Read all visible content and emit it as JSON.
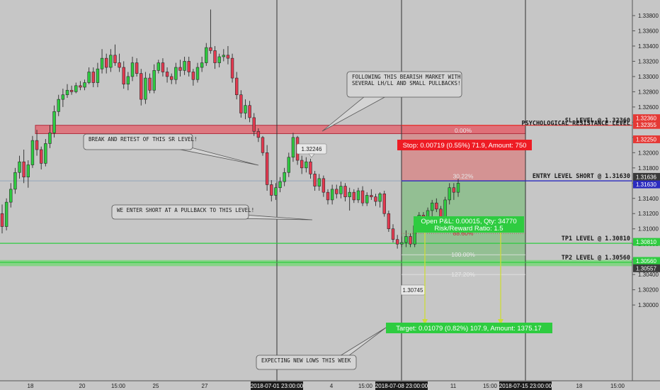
{
  "chart_data": {
    "type": "candlestick",
    "x_ticks": [
      "18",
      "20",
      "15:00",
      "25",
      "27",
      "2018-07-01 23:00:00",
      "4",
      "15:00",
      "2018-07-08 23:00:00",
      "11",
      "15:00",
      "2018-07-15 23:00:00",
      "18",
      "15:00"
    ],
    "y_ticks": [
      "1.33800",
      "1.33600",
      "1.33400",
      "1.33200",
      "1.33000",
      "1.32800",
      "1.32600",
      "1.32400",
      "1.32200",
      "1.32000",
      "1.31800",
      "1.31600",
      "1.31400",
      "1.31200",
      "1.31000",
      "1.30800",
      "1.30600",
      "1.30400",
      "1.30200",
      "1.30000"
    ],
    "ylim": [
      1.2998,
      1.3392
    ],
    "y_top_tick": 1.338,
    "candles_ohlc": [
      [
        1.312,
        1.3132,
        1.3094,
        1.3103
      ],
      [
        1.3103,
        1.314,
        1.3098,
        1.3135
      ],
      [
        1.3135,
        1.316,
        1.3128,
        1.3152
      ],
      [
        1.3152,
        1.318,
        1.3146,
        1.3174
      ],
      [
        1.3174,
        1.3196,
        1.3166,
        1.3188
      ],
      [
        1.3188,
        1.3204,
        1.316,
        1.3168
      ],
      [
        1.3168,
        1.319,
        1.3154,
        1.3184
      ],
      [
        1.3184,
        1.3222,
        1.318,
        1.3216
      ],
      [
        1.3216,
        1.323,
        1.3196,
        1.3204
      ],
      [
        1.3204,
        1.3208,
        1.3178,
        1.3186
      ],
      [
        1.3186,
        1.3218,
        1.3182,
        1.3212
      ],
      [
        1.3212,
        1.3236,
        1.3206,
        1.3226
      ],
      [
        1.3226,
        1.3262,
        1.322,
        1.3254
      ],
      [
        1.3254,
        1.3276,
        1.3248,
        1.327
      ],
      [
        1.327,
        1.3284,
        1.326,
        1.3276
      ],
      [
        1.3276,
        1.329,
        1.3272,
        1.3282
      ],
      [
        1.3282,
        1.3288,
        1.3276,
        1.328
      ],
      [
        1.328,
        1.3292,
        1.3278,
        1.3288
      ],
      [
        1.3288,
        1.3294,
        1.3282,
        1.3286
      ],
      [
        1.3286,
        1.3296,
        1.3282,
        1.3292
      ],
      [
        1.3292,
        1.3312,
        1.329,
        1.3306
      ],
      [
        1.3306,
        1.3312,
        1.3286,
        1.3292
      ],
      [
        1.3292,
        1.3318,
        1.3286,
        1.331
      ],
      [
        1.331,
        1.3336,
        1.3304,
        1.3324
      ],
      [
        1.3324,
        1.333,
        1.3304,
        1.3312
      ],
      [
        1.3312,
        1.3336,
        1.3306,
        1.3328
      ],
      [
        1.3328,
        1.3342,
        1.3314,
        1.3318
      ],
      [
        1.3318,
        1.333,
        1.3306,
        1.3312
      ],
      [
        1.3312,
        1.332,
        1.3284,
        1.329
      ],
      [
        1.329,
        1.3306,
        1.3282,
        1.33
      ],
      [
        1.33,
        1.3326,
        1.3294,
        1.3318
      ],
      [
        1.3318,
        1.3324,
        1.33,
        1.3304
      ],
      [
        1.3304,
        1.331,
        1.3262,
        1.327
      ],
      [
        1.327,
        1.3306,
        1.3264,
        1.3298
      ],
      [
        1.3298,
        1.3304,
        1.3278,
        1.3282
      ],
      [
        1.3282,
        1.3316,
        1.3278,
        1.3308
      ],
      [
        1.3308,
        1.3322,
        1.3304,
        1.3318
      ],
      [
        1.3318,
        1.3324,
        1.33,
        1.3306
      ],
      [
        1.3306,
        1.3312,
        1.3292,
        1.33
      ],
      [
        1.33,
        1.3304,
        1.329,
        1.3296
      ],
      [
        1.3296,
        1.3318,
        1.329,
        1.3312
      ],
      [
        1.3312,
        1.3322,
        1.33,
        1.3308
      ],
      [
        1.3308,
        1.3326,
        1.3302,
        1.332
      ],
      [
        1.332,
        1.3326,
        1.33,
        1.3306
      ],
      [
        1.3306,
        1.331,
        1.3288,
        1.3296
      ],
      [
        1.3296,
        1.3318,
        1.3292,
        1.3312
      ],
      [
        1.3312,
        1.3326,
        1.3306,
        1.3318
      ],
      [
        1.3318,
        1.3344,
        1.3314,
        1.3338
      ],
      [
        1.3338,
        1.3388,
        1.333,
        1.3334
      ],
      [
        1.3334,
        1.334,
        1.331,
        1.3318
      ],
      [
        1.3318,
        1.333,
        1.3312,
        1.3326
      ],
      [
        1.3326,
        1.3336,
        1.332,
        1.3328
      ],
      [
        1.3328,
        1.334,
        1.3316,
        1.3324
      ],
      [
        1.3324,
        1.333,
        1.3292,
        1.3298
      ],
      [
        1.3298,
        1.3306,
        1.327,
        1.3276
      ],
      [
        1.3276,
        1.3282,
        1.3246,
        1.3252
      ],
      [
        1.3252,
        1.327,
        1.3244,
        1.3262
      ],
      [
        1.3262,
        1.3268,
        1.324,
        1.3246
      ],
      [
        1.3246,
        1.3252,
        1.3222,
        1.3228
      ],
      [
        1.3228,
        1.3232,
        1.3214,
        1.322
      ],
      [
        1.322,
        1.3222,
        1.3196,
        1.32
      ],
      [
        1.32,
        1.321,
        1.315,
        1.3158
      ],
      [
        1.3158,
        1.3164,
        1.3136,
        1.3144
      ],
      [
        1.3144,
        1.316,
        1.3138,
        1.3154
      ],
      [
        1.3154,
        1.3168,
        1.3148,
        1.3162
      ],
      [
        1.3162,
        1.318,
        1.3156,
        1.3174
      ],
      [
        1.3174,
        1.32,
        1.3168,
        1.3194
      ],
      [
        1.3194,
        1.3226,
        1.3188,
        1.322
      ],
      [
        1.322,
        1.3222,
        1.3184,
        1.319
      ],
      [
        1.319,
        1.3196,
        1.3172,
        1.318
      ],
      [
        1.318,
        1.3194,
        1.3174,
        1.3188
      ],
      [
        1.3188,
        1.3192,
        1.3166,
        1.3172
      ],
      [
        1.3172,
        1.3176,
        1.315,
        1.3156
      ],
      [
        1.3156,
        1.3172,
        1.315,
        1.3166
      ],
      [
        1.3166,
        1.317,
        1.3142,
        1.3148
      ],
      [
        1.3148,
        1.3152,
        1.3132,
        1.3138
      ],
      [
        1.3138,
        1.3158,
        1.3132,
        1.3152
      ],
      [
        1.3152,
        1.3158,
        1.314,
        1.3146
      ],
      [
        1.3146,
        1.3162,
        1.314,
        1.3156
      ],
      [
        1.3156,
        1.316,
        1.3136,
        1.3142
      ],
      [
        1.3142,
        1.3154,
        1.3124,
        1.3148
      ],
      [
        1.3148,
        1.3152,
        1.3134,
        1.3138
      ],
      [
        1.3138,
        1.3154,
        1.3134,
        1.315
      ],
      [
        1.315,
        1.3156,
        1.313,
        1.3134
      ],
      [
        1.3134,
        1.3148,
        1.313,
        1.3144
      ],
      [
        1.3144,
        1.3152,
        1.3138,
        1.3142
      ],
      [
        1.3142,
        1.3146,
        1.313,
        1.3136
      ],
      [
        1.3136,
        1.3148,
        1.3128,
        1.3146
      ],
      [
        1.3146,
        1.315,
        1.3116,
        1.312
      ],
      [
        1.312,
        1.3124,
        1.3096,
        1.31
      ],
      [
        1.31,
        1.3106,
        1.3082,
        1.3086
      ],
      [
        1.3086,
        1.3092,
        1.3074,
        1.308
      ],
      [
        1.308,
        1.309,
        1.3076,
        1.3082
      ],
      [
        1.3082,
        1.3098,
        1.3076,
        1.309
      ],
      [
        1.309,
        1.3094,
        1.3076,
        1.308
      ],
      [
        1.308,
        1.311,
        1.3076,
        1.3104
      ],
      [
        1.3104,
        1.3122,
        1.3096,
        1.3118
      ],
      [
        1.3118,
        1.3122,
        1.3102,
        1.3108
      ],
      [
        1.3108,
        1.3128,
        1.3104,
        1.3124
      ],
      [
        1.3124,
        1.3138,
        1.3116,
        1.3134
      ],
      [
        1.3134,
        1.314,
        1.3122,
        1.3126
      ],
      [
        1.3126,
        1.313,
        1.311,
        1.3114
      ],
      [
        1.3114,
        1.3142,
        1.3108,
        1.3138
      ],
      [
        1.3138,
        1.316,
        1.3132,
        1.3154
      ],
      [
        1.3154,
        1.316,
        1.3138,
        1.3148
      ],
      [
        1.3148,
        1.3166,
        1.3142,
        1.316
      ]
    ],
    "level_lines": [
      {
        "price": 1.3236,
        "color": "#e53935",
        "label": "SL LEVEL @ 1.32360"
      },
      {
        "price": 1.32306,
        "color": "#e53935",
        "label": "PSYCHOLOGICAL RESISTANCE LEVEL"
      },
      {
        "price": 1.3163,
        "color": "#2b2bbf",
        "label": "ENTRY LEVEL SHORT @ 1.31630"
      },
      {
        "price": 1.3081,
        "color": "#2ecc40",
        "label": "TP1 LEVEL @ 1.30810"
      },
      {
        "price": 1.3056,
        "color": "#2ecc40",
        "label": "TP2 LEVEL @ 1.30560"
      }
    ],
    "price_tags": [
      {
        "text": "1.32360",
        "price": 1.3236,
        "bg": "#e53935"
      },
      {
        "text": "1.32355",
        "price": 1.32355,
        "bg": "#e53935"
      },
      {
        "text": "1.32250",
        "price": 1.3225,
        "bg": "#e53935"
      },
      {
        "text": "1.31636",
        "price": 1.31636,
        "bg": "#3a3a3a"
      },
      {
        "text": "1.31630",
        "price": 1.3163,
        "bg": "#2b2bbf"
      },
      {
        "text": "1.30810",
        "price": 1.3081,
        "bg": "#2ecc40"
      },
      {
        "text": "1.30560",
        "price": 1.3056,
        "bg": "#2ecc40"
      },
      {
        "text": "1.30557",
        "price": 1.30557,
        "bg": "#3a3a3a"
      }
    ],
    "zones": {
      "resistance": [
        1.3225,
        1.3236
      ],
      "stop": [
        1.3163,
        1.3236
      ],
      "target": [
        1.3052,
        1.3163
      ],
      "tp2_band": [
        1.3051,
        1.3059
      ]
    },
    "fib_labels": [
      {
        "text": "0.00%",
        "price": 1.3229
      },
      {
        "text": "30.22%",
        "price": 1.3169
      },
      {
        "text": "88.60%",
        "price": 1.3094
      },
      {
        "text": "100.00%",
        "price": 1.3066
      },
      {
        "text": "127.20%",
        "price": 1.304
      }
    ],
    "price_labels": [
      {
        "text": "1.32246",
        "price": 1.3246
      },
      {
        "text": "1.30745",
        "price": 1.3085
      }
    ],
    "position": {
      "stop": "Stop: 0.00719 (0.55%) 71.9, Amount: 750",
      "open_pl": "Open P&L: 0.00015, Qty: 34770",
      "risk_reward": "Risk/Reward Ratio: 1.5",
      "target": "Target: 0.01079 (0.82%) 107.9, Amount: 1375.17"
    },
    "annotations": [
      "FOLLOWING THIS BEARISH MARKET WITH SEVERAL LH/LL AND SMALL PULLBACKS!",
      "BREAK AND RETEST OF THIS SR LEVEL!",
      "WE ENTER SHORT AT A PULLBACK TO THIS LEVEL!",
      "EXPECTING NEW LOWS THIS WEEK"
    ],
    "colors": {
      "bull": "#2ecc40",
      "bear": "#e53950",
      "background": "#c6c6c6"
    },
    "grid": false
  }
}
